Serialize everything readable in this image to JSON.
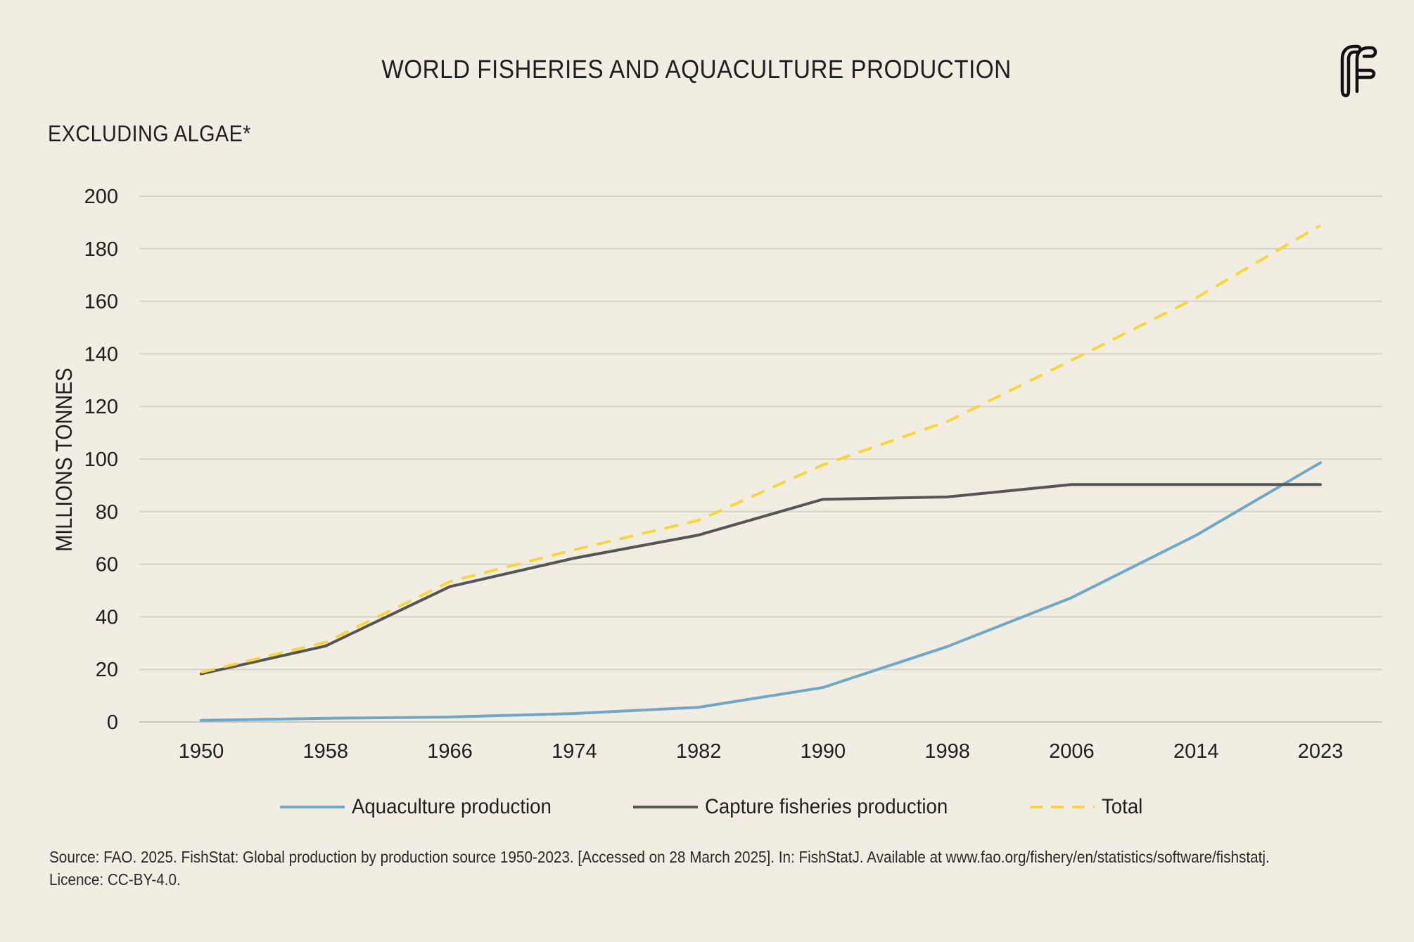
{
  "header": {
    "title": "WORLD FISHERIES AND AQUACULTURE PRODUCTION",
    "subtitle": "EXCLUDING ALGAE*",
    "logo_icon": "fao-f-logo-icon"
  },
  "chart_data": {
    "type": "line",
    "ylabel": "MILLIONS TONNES",
    "xlabel": "",
    "ylim": [
      0,
      200
    ],
    "yticks": [
      0,
      20,
      40,
      60,
      80,
      100,
      120,
      140,
      160,
      180,
      200
    ],
    "categories": [
      "1950",
      "1958",
      "1966",
      "1974",
      "1982",
      "1990",
      "1998",
      "2006",
      "2014",
      "2023"
    ],
    "grid": true,
    "legend_position": "bottom",
    "series": [
      {
        "name": "Aquaculture production",
        "color": "#6fa8c6",
        "style": "solid",
        "values": [
          0.6,
          1.4,
          1.9,
          3.2,
          5.6,
          13.1,
          28.7,
          47.3,
          71.0,
          98.6
        ]
      },
      {
        "name": "Capture fisheries production",
        "color": "#555555",
        "style": "solid",
        "values": [
          18.3,
          28.9,
          51.5,
          62.3,
          71.1,
          84.7,
          85.6,
          90.3,
          90.3,
          90.3
        ]
      },
      {
        "name": "Total",
        "color": "#f7d63c",
        "style": "dashed",
        "values": [
          18.9,
          30.3,
          53.4,
          65.5,
          76.7,
          97.8,
          114.3,
          137.6,
          161.3,
          188.9
        ]
      }
    ]
  },
  "footer": {
    "source_line1": "Source: FAO. 2025. FishStat: Global production by production source 1950-2023. [Accessed on 28 March 2025]. In: FishStatJ. Available at www.fao.org/fishery/en/statistics/software/fishstatj.",
    "source_line2": "Licence: CC-BY-4.0."
  }
}
